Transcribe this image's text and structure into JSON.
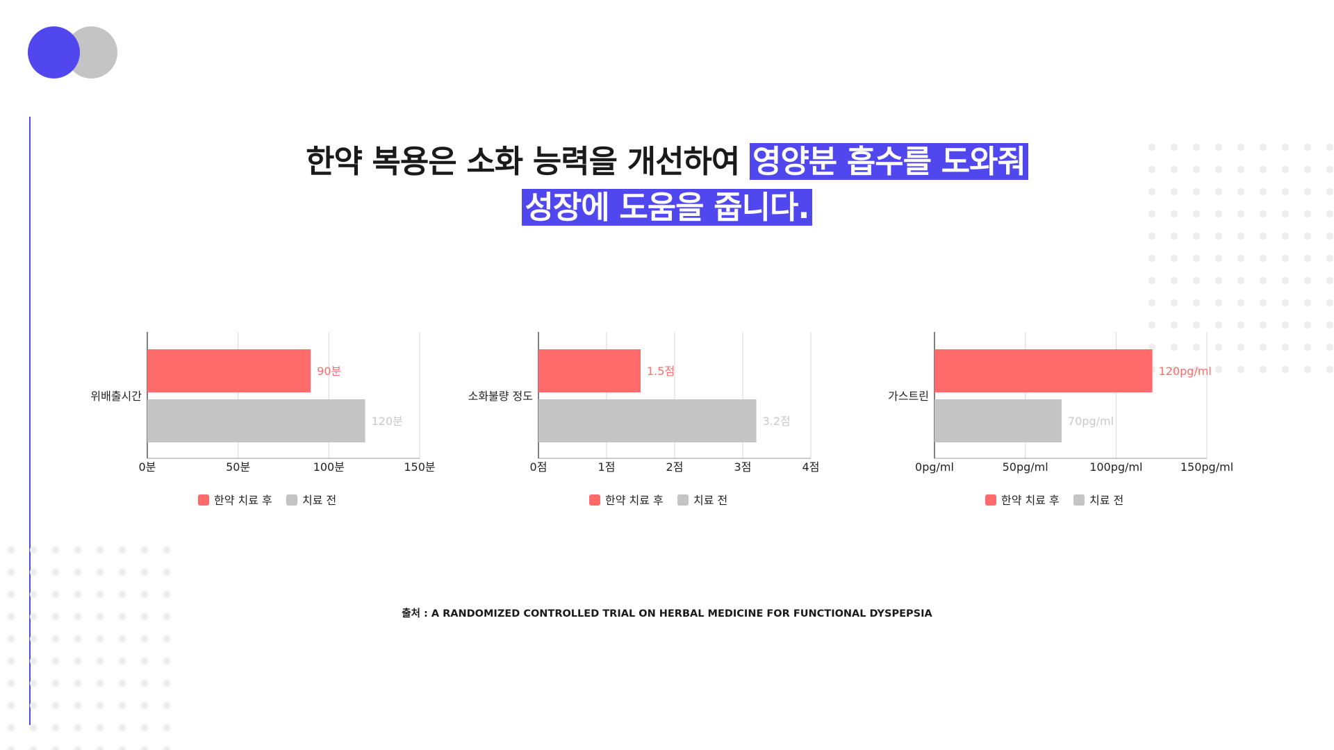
{
  "headline": {
    "line1_plain": "한약 복용은 소화 능력을 개선하여 ",
    "line1_highlight": "영양분 흡수를 도와줘",
    "line2_highlight": "성장에 도움을 줍니다."
  },
  "colors": {
    "accent": "#5048ee",
    "after": "#ff6b6b",
    "before": "#c4c4c4",
    "after_label": "#ff6b6b",
    "before_label": "#c9c9c9",
    "axis": "#555555",
    "grid": "#d4d4d4"
  },
  "legend": {
    "after_label": "한약 치료 후",
    "before_label": "치료 전"
  },
  "source": "출처 : A RANDOMIZED CONTROLLED TRIAL ON HERBAL MEDICINE FOR FUNCTIONAL DYSPEPSIA",
  "chart_data": [
    {
      "type": "bar",
      "orientation": "horizontal",
      "categories": [
        "위배출시간"
      ],
      "series": [
        {
          "name": "한약 치료 후",
          "values": [
            90
          ],
          "labels": [
            "90분"
          ]
        },
        {
          "name": "치료 전",
          "values": [
            120
          ],
          "labels": [
            "120분"
          ]
        }
      ],
      "xlim": [
        0,
        150
      ],
      "x_ticks": [
        0,
        50,
        100,
        150
      ],
      "x_tick_labels": [
        "0분",
        "50분",
        "100분",
        "150분"
      ],
      "grid": true,
      "legend": "bottom"
    },
    {
      "type": "bar",
      "orientation": "horizontal",
      "categories": [
        "소화불량 정도"
      ],
      "series": [
        {
          "name": "한약 치료 후",
          "values": [
            1.5
          ],
          "labels": [
            "1.5점"
          ]
        },
        {
          "name": "치료 전",
          "values": [
            3.2
          ],
          "labels": [
            "3.2점"
          ]
        }
      ],
      "xlim": [
        0,
        4
      ],
      "x_ticks": [
        0,
        1,
        2,
        3,
        4
      ],
      "x_tick_labels": [
        "0점",
        "1점",
        "2점",
        "3점",
        "4점"
      ],
      "grid": true,
      "legend": "bottom"
    },
    {
      "type": "bar",
      "orientation": "horizontal",
      "categories": [
        "가스트린"
      ],
      "series": [
        {
          "name": "한약 치료 후",
          "values": [
            120
          ],
          "labels": [
            "120pg/ml"
          ]
        },
        {
          "name": "치료 전",
          "values": [
            70
          ],
          "labels": [
            "70pg/ml"
          ]
        }
      ],
      "xlim": [
        0,
        150
      ],
      "x_ticks": [
        0,
        50,
        100,
        150
      ],
      "x_tick_labels": [
        "0pg/ml",
        "50pg/ml",
        "100pg/ml",
        "150pg/ml"
      ],
      "grid": true,
      "legend": "bottom"
    }
  ]
}
